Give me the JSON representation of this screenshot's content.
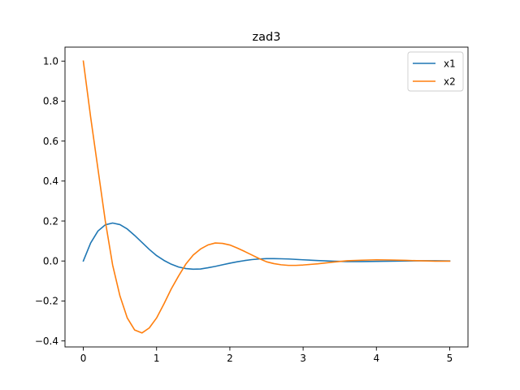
{
  "chart_data": {
    "type": "line",
    "title": "zad3",
    "xlabel": "",
    "ylabel": "",
    "xlim": [
      -0.25,
      5.25
    ],
    "ylim": [
      -0.43,
      1.07
    ],
    "xticks": [
      0,
      1,
      2,
      3,
      4,
      5
    ],
    "xtick_labels": [
      "0",
      "1",
      "2",
      "3",
      "4",
      "5"
    ],
    "yticks": [
      -0.4,
      -0.2,
      0.0,
      0.2,
      0.4,
      0.6,
      0.8,
      1.0
    ],
    "ytick_labels": [
      "−0.4",
      "−0.2",
      "0.0",
      "0.2",
      "0.4",
      "0.6",
      "0.8",
      "1.0"
    ],
    "grid": false,
    "legend_position": "top-right",
    "series": [
      {
        "name": "x1",
        "color": "#1f77b4",
        "x": [
          0,
          0.1,
          0.2,
          0.3,
          0.4,
          0.5,
          0.6,
          0.7,
          0.8,
          0.9,
          1.0,
          1.1,
          1.2,
          1.3,
          1.4,
          1.5,
          1.6,
          1.7,
          1.8,
          1.9,
          2.0,
          2.1,
          2.2,
          2.3,
          2.4,
          2.5,
          2.6,
          2.7,
          2.8,
          2.9,
          3.0,
          3.2,
          3.4,
          3.6,
          3.8,
          4.0,
          4.2,
          4.4,
          4.6,
          4.8,
          5.0
        ],
        "values": [
          0.0,
          0.09,
          0.15,
          0.181,
          0.19,
          0.182,
          0.16,
          0.128,
          0.093,
          0.058,
          0.027,
          0.003,
          -0.016,
          -0.03,
          -0.038,
          -0.041,
          -0.04,
          -0.034,
          -0.027,
          -0.019,
          -0.011,
          -0.004,
          0.002,
          0.007,
          0.01,
          0.012,
          0.012,
          0.011,
          0.01,
          0.008,
          0.006,
          0.002,
          -0.001,
          -0.003,
          -0.003,
          -0.002,
          -0.001,
          0.0,
          0.001,
          0.001,
          0.0
        ]
      },
      {
        "name": "x2",
        "color": "#ff7f0e",
        "x": [
          0,
          0.1,
          0.2,
          0.3,
          0.4,
          0.5,
          0.6,
          0.7,
          0.8,
          0.9,
          1.0,
          1.1,
          1.2,
          1.3,
          1.4,
          1.5,
          1.6,
          1.7,
          1.8,
          1.9,
          2.0,
          2.1,
          2.2,
          2.3,
          2.4,
          2.5,
          2.6,
          2.7,
          2.8,
          2.9,
          3.0,
          3.2,
          3.4,
          3.6,
          3.8,
          4.0,
          4.2,
          4.4,
          4.6,
          4.8,
          5.0
        ],
        "values": [
          1.0,
          0.72,
          0.46,
          0.2,
          -0.02,
          -0.175,
          -0.285,
          -0.345,
          -0.36,
          -0.335,
          -0.285,
          -0.215,
          -0.14,
          -0.075,
          -0.015,
          0.03,
          0.06,
          0.08,
          0.09,
          0.088,
          0.08,
          0.065,
          0.048,
          0.03,
          0.012,
          -0.004,
          -0.013,
          -0.019,
          -0.022,
          -0.022,
          -0.02,
          -0.014,
          -0.006,
          0.001,
          0.004,
          0.006,
          0.005,
          0.003,
          0.001,
          -0.001,
          -0.001
        ]
      }
    ]
  }
}
